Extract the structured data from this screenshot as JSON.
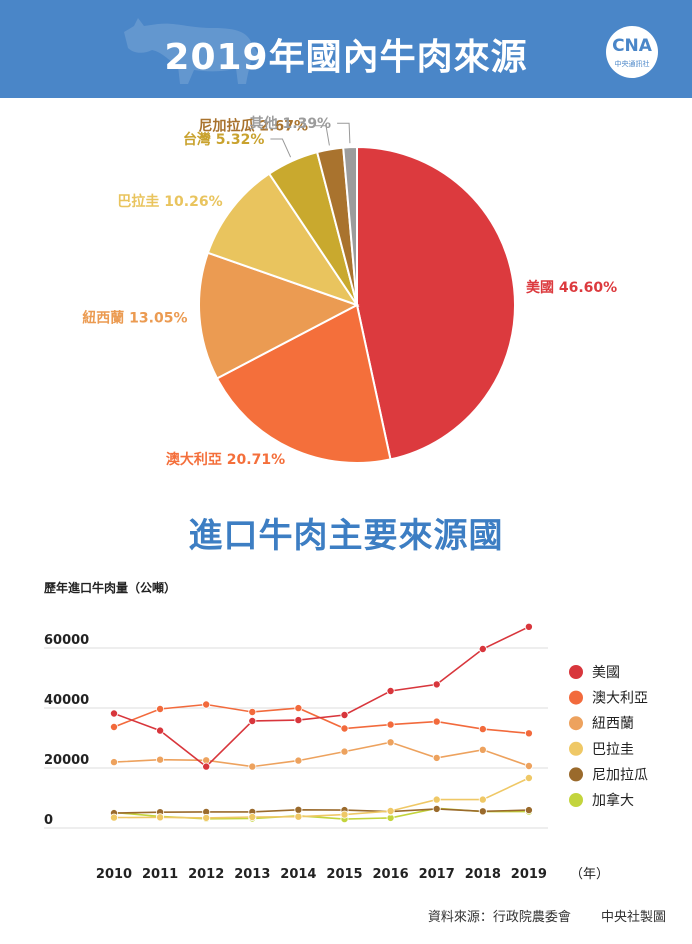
{
  "title": "2019年國內牛肉來源",
  "logo": {
    "mark": "CNA",
    "text": "中央通訊社"
  },
  "chart_data": [
    {
      "type": "pie",
      "title": "2019年國內牛肉來源",
      "labels": [
        "美國",
        "澳大利亞",
        "紐西蘭",
        "巴拉圭",
        "台灣",
        "尼加拉瓜",
        "其他"
      ],
      "values": [
        46.6,
        20.71,
        13.05,
        10.26,
        5.32,
        2.67,
        1.39
      ],
      "value_labels": [
        "46.60%",
        "20.71%",
        "13.05%",
        "10.26%",
        "5.32%",
        "2.67%",
        "1.39%"
      ],
      "colors": [
        "#dc3a3e",
        "#f46f3b",
        "#eb9b52",
        "#e9c45e",
        "#c9a92e",
        "#a9732e",
        "#9c9c9c"
      ]
    },
    {
      "type": "line",
      "title": "進口牛肉主要來源國",
      "ylabel": "歷年進口牛肉量（公噸）",
      "xlabel": "（年）",
      "x": [
        2010,
        2011,
        2012,
        2013,
        2014,
        2015,
        2016,
        2017,
        2018,
        2019
      ],
      "yticks": [
        0,
        20000,
        40000,
        60000
      ],
      "ylim": [
        0,
        64000
      ],
      "legend": "right",
      "grid": true,
      "series": [
        {
          "name": "美國",
          "color": "#d8363c",
          "values": [
            35500,
            29800,
            17800,
            33000,
            33300,
            35000,
            43000,
            45200,
            57000,
            64400
          ]
        },
        {
          "name": "澳大利亞",
          "color": "#f26a3c",
          "values": [
            31000,
            37000,
            38500,
            36000,
            37300,
            30500,
            31800,
            32800,
            30300,
            28900
          ]
        },
        {
          "name": "紐西蘭",
          "color": "#eda25e",
          "values": [
            19300,
            20100,
            19900,
            17800,
            19800,
            22800,
            25900,
            20700,
            23400,
            18000
          ]
        },
        {
          "name": "巴拉圭",
          "color": "#efc866",
          "values": [
            800,
            900,
            700,
            1000,
            1100,
            1800,
            3000,
            6800,
            6800,
            14000
          ]
        },
        {
          "name": "尼加拉瓜",
          "color": "#9a6a2c",
          "values": [
            2300,
            2600,
            2700,
            2700,
            3400,
            3300,
            2800,
            3700,
            2900,
            3300
          ]
        },
        {
          "name": "加拿大",
          "color": "#c3d43d",
          "values": [
            2500,
            1200,
            400,
            500,
            1400,
            300,
            700,
            3900,
            2800,
            2800
          ]
        }
      ]
    }
  ],
  "footer": {
    "source": "資料來源：行政院農委會",
    "credit": "中央社製圖"
  }
}
